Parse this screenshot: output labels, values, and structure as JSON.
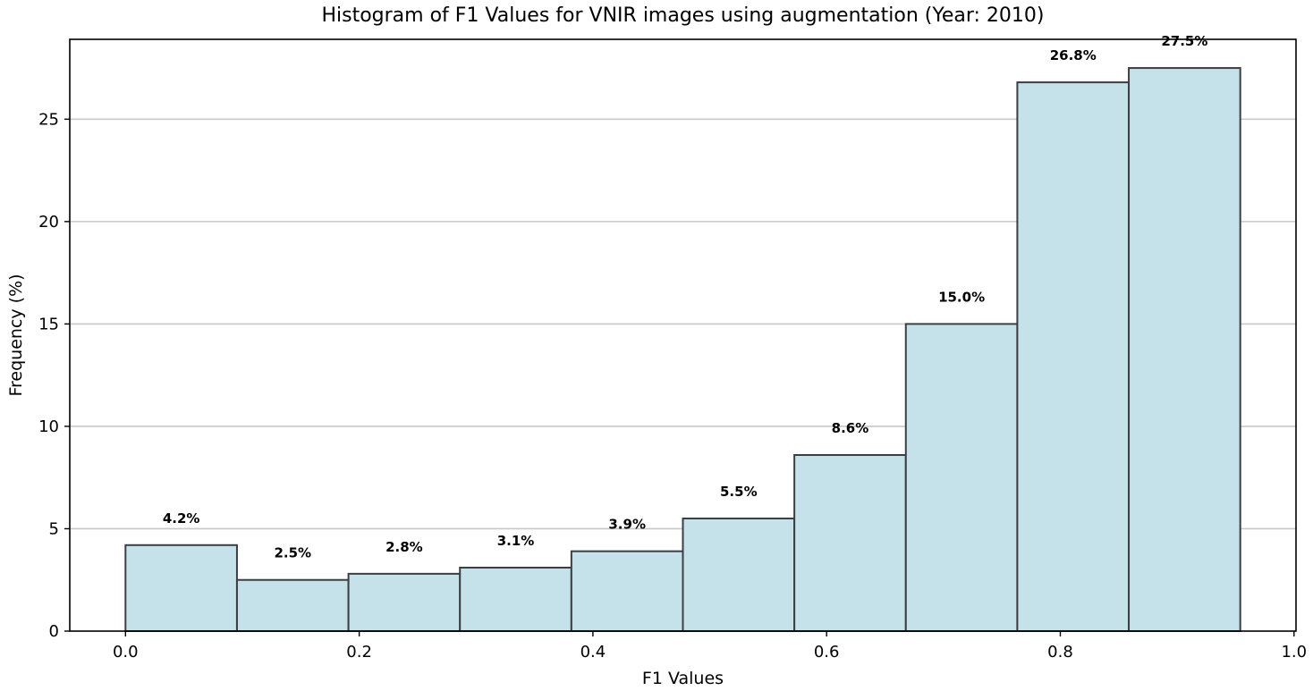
{
  "chart_data": {
    "type": "bar",
    "title": "Histogram of F1 Values for VNIR images using augmentation (Year: 2010)",
    "xlabel": "F1 Values",
    "ylabel": "Frequency (%)",
    "bin_edges": [
      0.0,
      0.0954,
      0.1908,
      0.2862,
      0.3816,
      0.477,
      0.5724,
      0.6678,
      0.7632,
      0.8586,
      0.954
    ],
    "values": [
      4.2,
      2.5,
      2.8,
      3.1,
      3.9,
      5.5,
      8.6,
      15.0,
      26.8,
      27.5
    ],
    "data_labels": [
      "4.2%",
      "2.5%",
      "2.8%",
      "3.1%",
      "3.9%",
      "5.5%",
      "8.6%",
      "15.0%",
      "26.8%",
      "27.5%"
    ],
    "xlim": [
      -0.0477,
      1.0017
    ],
    "ylim": [
      0,
      28.9
    ],
    "x_ticks": [
      0.0,
      0.2,
      0.4,
      0.6,
      0.8,
      1.0
    ],
    "x_tick_labels": [
      "0.0",
      "0.2",
      "0.4",
      "0.6",
      "0.8",
      "1.0"
    ],
    "y_ticks": [
      0,
      5,
      10,
      15,
      20,
      25
    ],
    "y_tick_labels": [
      "0",
      "5",
      "10",
      "15",
      "20",
      "25"
    ],
    "grid": "y-major",
    "bar_color": "#c5e2eb",
    "edge_color": "#3a3f44"
  }
}
